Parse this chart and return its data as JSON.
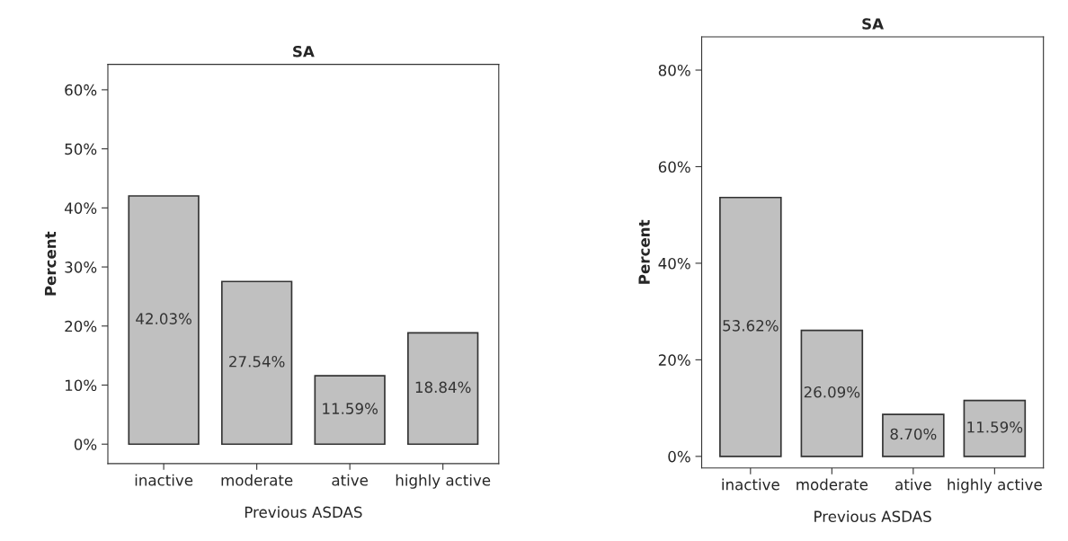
{
  "chart_data": [
    {
      "type": "bar",
      "title": "SA",
      "xlabel": "Previous ASDAS",
      "ylabel": "Percent",
      "categories": [
        "inactive",
        "moderate",
        "ative",
        "highly active"
      ],
      "values": [
        42.03,
        27.54,
        11.59,
        18.84
      ],
      "value_labels": [
        "42.03%",
        "27.54%",
        "11.59%",
        "18.84%"
      ],
      "color": "#c0c0c0",
      "ylim": [
        -3.3,
        64.3
      ],
      "yticks": [
        {
          "value": 0,
          "label": "0%"
        },
        {
          "value": 10,
          "label": "10%"
        },
        {
          "value": 20,
          "label": "20%"
        },
        {
          "value": 30,
          "label": "30%"
        },
        {
          "value": 40,
          "label": "40%"
        },
        {
          "value": 50,
          "label": "50%"
        },
        {
          "value": 60,
          "label": "60%"
        }
      ],
      "grid": false
    },
    {
      "type": "bar",
      "title": "SA",
      "xlabel": "Previous ASDAS",
      "ylabel": "Percent",
      "categories": [
        "inactive",
        "moderate",
        "ative",
        "highly active"
      ],
      "values": [
        53.62,
        26.09,
        8.7,
        11.59
      ],
      "value_labels": [
        "53.62%",
        "26.09%",
        "8.70%",
        "11.59%"
      ],
      "color": "#c0c0c0",
      "ylim": [
        -2.4,
        86.9
      ],
      "yticks": [
        {
          "value": 0,
          "label": "0%"
        },
        {
          "value": 20,
          "label": "20%"
        },
        {
          "value": 40,
          "label": "40%"
        },
        {
          "value": 60,
          "label": "60%"
        },
        {
          "value": 80,
          "label": "80%"
        }
      ],
      "grid": false
    }
  ]
}
